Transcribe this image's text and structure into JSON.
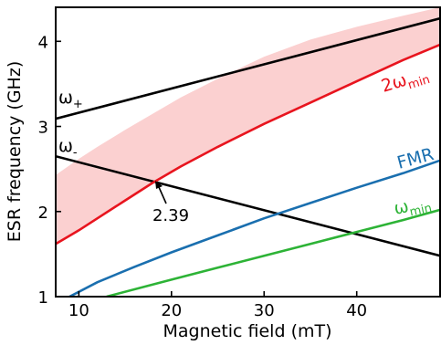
{
  "chart_data": {
    "type": "line",
    "xlabel": "Magnetic field (mT)",
    "ylabel": "ESR frequency (GHz)",
    "xlim": [
      7.5,
      49
    ],
    "ylim": [
      1,
      4.4
    ],
    "x_ticks": [
      10,
      20,
      30,
      40
    ],
    "y_ticks": [
      1,
      2,
      3,
      4
    ],
    "grid": false,
    "series": [
      {
        "name": "ω+",
        "color": "#000000",
        "x": [
          7.5,
          49
        ],
        "y": [
          3.09,
          4.27
        ]
      },
      {
        "name": "ω-",
        "color": "#000000",
        "x": [
          7.5,
          49
        ],
        "y": [
          2.65,
          1.48
        ]
      },
      {
        "name": "2ωmin",
        "color": "#e8141e",
        "x": [
          7.5,
          10,
          12,
          15,
          18,
          21,
          25,
          30,
          35,
          40,
          45,
          49
        ],
        "y": [
          1.62,
          1.78,
          1.92,
          2.13,
          2.34,
          2.53,
          2.76,
          3.03,
          3.28,
          3.53,
          3.78,
          3.96
        ]
      },
      {
        "name": "FMR",
        "color": "#1a6faf",
        "x": [
          9,
          12,
          16,
          20,
          25,
          30,
          35,
          40,
          45,
          49
        ],
        "y": [
          1.0,
          1.17,
          1.35,
          1.52,
          1.72,
          1.92,
          2.1,
          2.28,
          2.45,
          2.6
        ]
      },
      {
        "name": "ωmin",
        "color": "#2db336",
        "x": [
          13,
          20,
          25,
          30,
          35,
          40,
          45,
          49
        ],
        "y": [
          1.0,
          1.2,
          1.34,
          1.48,
          1.62,
          1.76,
          1.9,
          2.02
        ]
      }
    ],
    "band": {
      "color": "#fbd0d0",
      "x": [
        7.5,
        10,
        12,
        15,
        18,
        21,
        25,
        30,
        35,
        40,
        45,
        49
      ],
      "lower": [
        1.62,
        1.78,
        1.92,
        2.13,
        2.34,
        2.53,
        2.76,
        3.03,
        3.28,
        3.53,
        3.78,
        3.96
      ],
      "upper": [
        2.43,
        2.62,
        2.76,
        2.96,
        3.15,
        3.34,
        3.56,
        3.82,
        4.02,
        4.17,
        4.3,
        4.4
      ]
    },
    "curve_labels": [
      {
        "base": "ω",
        "sub": "+",
        "series": "ω+"
      },
      {
        "base": "ω",
        "sub": "-",
        "series": "ω-"
      },
      {
        "base": "2ω",
        "sub": "min",
        "series": "2ωmin"
      },
      {
        "base": "FMR",
        "sub": "",
        "series": "FMR"
      },
      {
        "base": "ω",
        "sub": "min",
        "series": "ωmin"
      }
    ],
    "annotation": {
      "text": "2.39",
      "x": 18.5,
      "y": 2.34
    }
  }
}
